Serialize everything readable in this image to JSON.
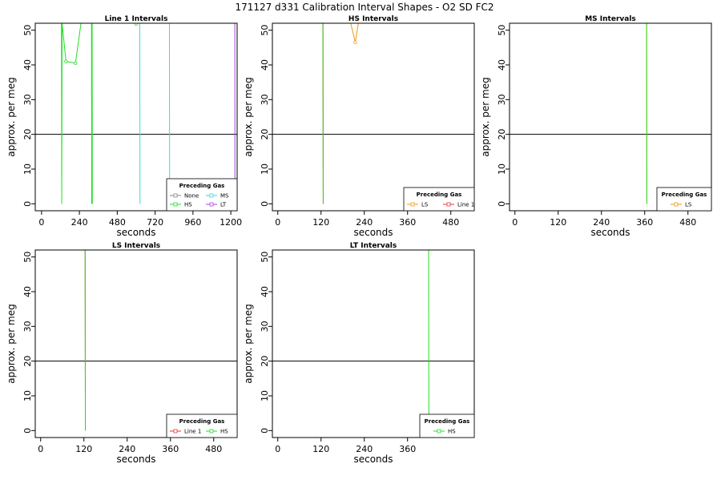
{
  "figure_title": "171127  d331   Calibration Interval Shapes - O2 SD FC2",
  "colors": {
    "None": "#888888",
    "HS": "#22dd22",
    "MS": "#33dddd",
    "LT": "#aa44dd",
    "LS": "#ee9911",
    "Line 1": "#ee3333",
    "ref": "#000000"
  },
  "chart_data": [
    {
      "type": "line",
      "title": "Line 1 Intervals",
      "xlabel": "seconds",
      "ylabel": "approx. per meg",
      "xlim": [
        -40,
        1240
      ],
      "ylim": [
        -2,
        52
      ],
      "xticks": [
        0,
        240,
        480,
        720,
        960,
        1200
      ],
      "yticks": [
        0,
        10,
        20,
        30,
        40,
        50
      ],
      "hline": 20,
      "legend": {
        "title": "Preceding Gas",
        "position": "bottom-right",
        "entries": [
          "None",
          "MS",
          "HS",
          "LT"
        ]
      },
      "series": [
        {
          "name": "HS",
          "points": [
            [
              125,
              80
            ],
            [
              128,
              0
            ],
            [
              130,
              52
            ],
            [
              155,
              41
            ],
            [
              215,
              40.5
            ],
            [
              250,
              52
            ]
          ]
        },
        {
          "name": "HS",
          "points": [
            [
              316,
              80
            ],
            [
              318,
              0
            ]
          ]
        },
        {
          "name": "HS",
          "points": [
            [
              320,
              80
            ],
            [
              322,
              0
            ]
          ]
        },
        {
          "name": "HS",
          "points": [
            [
              580,
              52.5
            ],
            [
              600,
              51.8
            ],
            [
              620,
              52.5
            ]
          ]
        },
        {
          "name": "MS",
          "points": [
            [
              622,
              80
            ],
            [
              624,
              0
            ]
          ]
        },
        {
          "name": "MS",
          "points": [
            [
              810,
              80
            ],
            [
              812,
              0
            ]
          ]
        },
        {
          "name": "LT",
          "points": [
            [
              1225,
              80
            ],
            [
              1226,
              0
            ]
          ]
        }
      ]
    },
    {
      "type": "line",
      "title": "HS Intervals",
      "xlabel": "seconds",
      "ylabel": "approx. per meg",
      "xlim": [
        -15,
        545
      ],
      "ylim": [
        -2,
        52
      ],
      "xticks": [
        0,
        120,
        240,
        360,
        480
      ],
      "yticks": [
        0,
        10,
        20,
        30,
        40,
        50
      ],
      "hline": 20,
      "legend": {
        "title": "Preceding Gas",
        "position": "bottom-right",
        "entries": [
          "LS",
          "Line 1"
        ]
      },
      "series": [
        {
          "name": "LS",
          "points": [
            [
              200,
              53
            ],
            [
              215,
              46.5
            ],
            [
              225,
              53
            ]
          ]
        },
        {
          "name": "Line 1",
          "points": [
            [
              125,
              80
            ],
            [
              126,
              0
            ]
          ]
        },
        {
          "name": "HS",
          "points": [
            [
              125,
              80
            ],
            [
              126,
              0
            ]
          ]
        }
      ]
    },
    {
      "type": "line",
      "title": "MS Intervals",
      "xlabel": "seconds",
      "ylabel": "approx. per meg",
      "xlim": [
        -15,
        545
      ],
      "ylim": [
        -2,
        52
      ],
      "xticks": [
        0,
        120,
        240,
        360,
        480
      ],
      "yticks": [
        0,
        10,
        20,
        30,
        40,
        50
      ],
      "hline": 20,
      "legend": {
        "title": "Preceding Gas",
        "position": "bottom-right",
        "entries": [
          "LS"
        ]
      },
      "series": [
        {
          "name": "LS",
          "points": [
            [
              365,
              80
            ],
            [
              366,
              0
            ]
          ]
        },
        {
          "name": "HS",
          "points": [
            [
              365,
              80
            ],
            [
              366,
              0
            ]
          ]
        }
      ]
    },
    {
      "type": "line",
      "title": "LS Intervals",
      "xlabel": "seconds",
      "ylabel": "approx. per meg",
      "xlim": [
        -15,
        545
      ],
      "ylim": [
        -2,
        52
      ],
      "xticks": [
        0,
        120,
        240,
        360,
        480
      ],
      "yticks": [
        0,
        10,
        20,
        30,
        40,
        50
      ],
      "hline": 20,
      "legend": {
        "title": "Preceding Gas",
        "position": "bottom-right",
        "entries": [
          "Line 1",
          "HS"
        ]
      },
      "series": [
        {
          "name": "Line 1",
          "points": [
            [
              123,
              80
            ],
            [
              124,
              0
            ]
          ]
        },
        {
          "name": "HS",
          "points": [
            [
              123,
              80
            ],
            [
              124,
              0
            ]
          ]
        }
      ]
    },
    {
      "type": "line",
      "title": "LT Intervals",
      "xlabel": "seconds",
      "ylabel": "approx. per meg",
      "xlim": [
        -15,
        545
      ],
      "ylim": [
        -2,
        52
      ],
      "xticks": [
        0,
        120,
        240,
        360
      ],
      "yticks": [
        0,
        10,
        20,
        30,
        40,
        50
      ],
      "hline": 20,
      "legend": {
        "title": "Preceding Gas",
        "position": "bottom-right",
        "entries": [
          "HS"
        ]
      },
      "series": [
        {
          "name": "HS",
          "points": [
            [
              418,
              80
            ],
            [
              419,
              0
            ]
          ]
        }
      ]
    }
  ]
}
